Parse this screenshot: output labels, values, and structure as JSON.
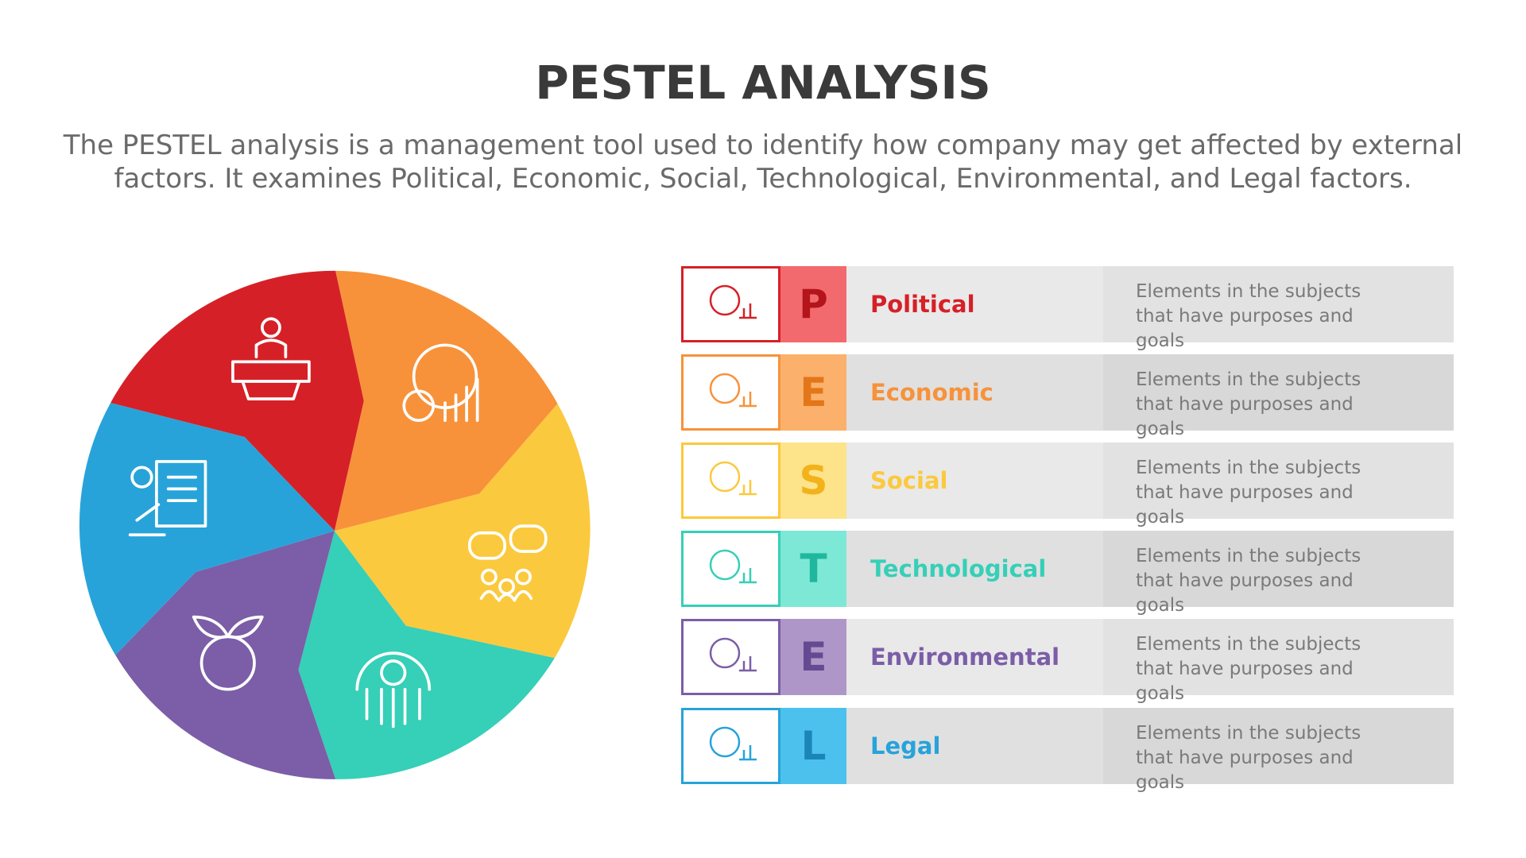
{
  "header": {
    "title": "PESTEL ANALYSIS",
    "subtitle": "The PESTEL analysis is a management tool used to identify how company may get affected by external factors. It examines Political, Economic, Social, Technological, Environmental, and Legal factors."
  },
  "items": [
    {
      "letter": "P",
      "label": "Political",
      "description": "Elements in the subjects that have purposes and goals"
    },
    {
      "letter": "E",
      "label": "Economic",
      "description": "Elements in the subjects that have purposes and goals"
    },
    {
      "letter": "S",
      "label": "Social",
      "description": "Elements in the subjects that have purposes and goals"
    },
    {
      "letter": "T",
      "label": "Technological",
      "description": "Elements in the subjects that have purposes and goals"
    },
    {
      "letter": "E",
      "label": "Environmental",
      "description": "Elements in the subjects that have purposes and goals"
    },
    {
      "letter": "L",
      "label": "Legal",
      "description": "Elements in the subjects that have purposes and goals"
    }
  ]
}
